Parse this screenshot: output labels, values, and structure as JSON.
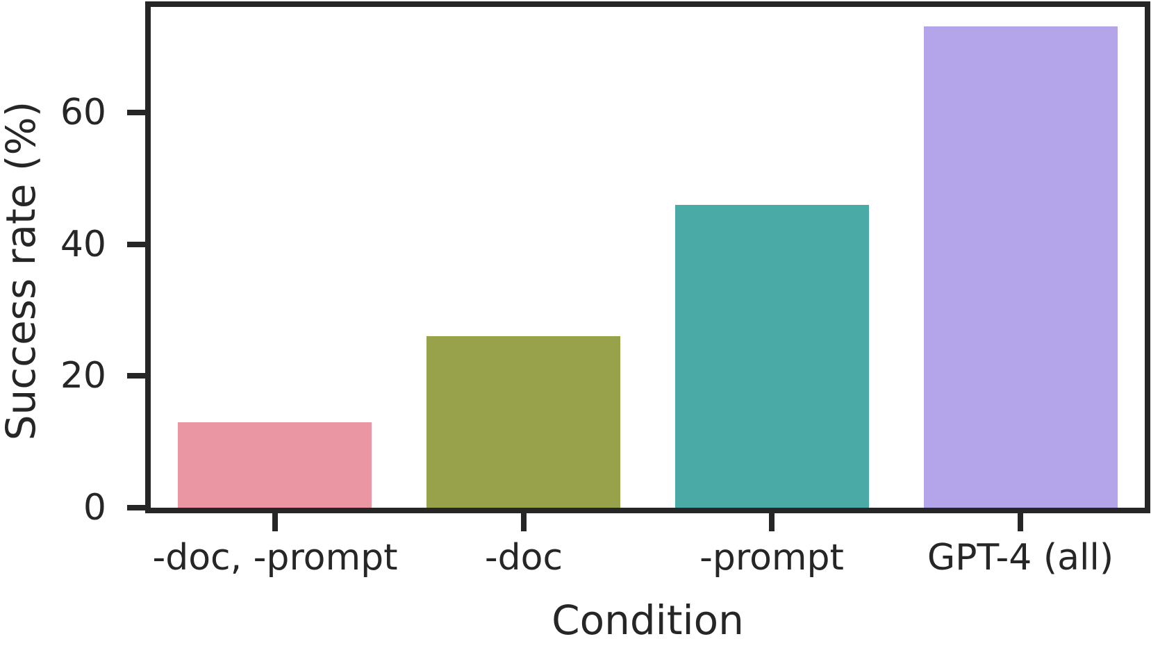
{
  "chart_data": {
    "type": "bar",
    "title": "",
    "xlabel": "Condition",
    "ylabel": "Success rate (%)",
    "categories": [
      "-doc, -prompt",
      "-doc",
      "-prompt",
      "GPT-4 (all)"
    ],
    "values": [
      13,
      26,
      46,
      73
    ],
    "bar_colors": [
      "#ea96a3",
      "#97a24a",
      "#4aaaa5",
      "#b4a4e9"
    ],
    "yticks": [
      0,
      20,
      40,
      60
    ],
    "ylim": [
      0,
      76
    ],
    "grid": false,
    "legend": "none",
    "bar_width_fraction": 0.78,
    "axis_color": "#262626",
    "text_color": "#262626",
    "background_color": "#ffffff"
  }
}
